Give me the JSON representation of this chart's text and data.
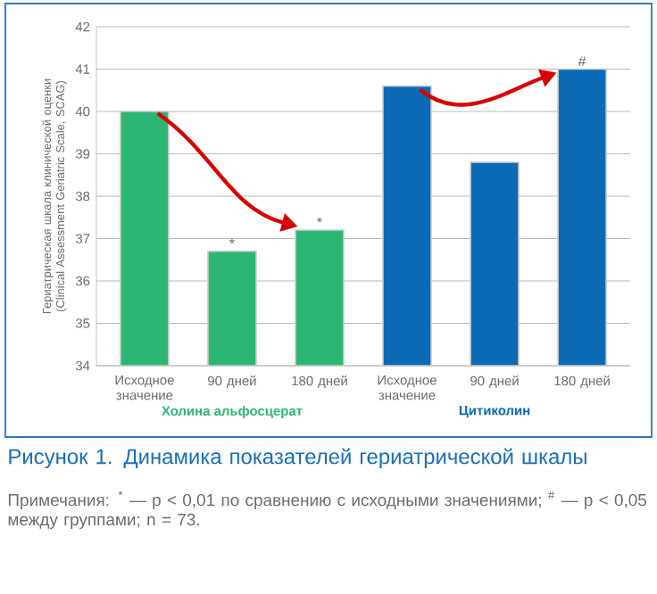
{
  "chart_data": {
    "type": "bar",
    "title": "Рисунок 1. Динамика показателей гериатрической шкалы",
    "ylabel": "Гериатрическая шкала клинической оценки (Clinical Assessment Geriatric Scale, SCAG)",
    "annotations": [
      "Примечания: $^{*}$ — p < 0,01 по сравнению с исходными значениями; $^{#}$ — p < 0,05 между группами; n = 73."
    ],
    "categories": [
      "Исходное значение",
      "90 дней",
      "180 дней",
      "Исходное значение",
      "90 дней",
      "180 дней"
    ],
    "series": [
      {
        "name": "Холина альфосцерат",
        "color": "#2bb673",
        "values": [
          40.0,
          36.7,
          37.2,
          null,
          null,
          null
        ],
        "value_labels": [
          null,
          "*",
          "*",
          null,
          null,
          null
        ]
      },
      {
        "name": "Цитиколин",
        "color": "#0a6ab6",
        "values": [
          null,
          null,
          null,
          40.6,
          38.8,
          41.0
        ],
        "value_labels": [
          null,
          null,
          null,
          null,
          null,
          "#"
        ]
      }
    ],
    "ylim": [
      34,
      42
    ],
    "yticks": [
      34,
      35,
      36,
      37,
      38,
      39,
      40,
      41,
      42
    ],
    "grid": "y",
    "legend": false
  }
}
